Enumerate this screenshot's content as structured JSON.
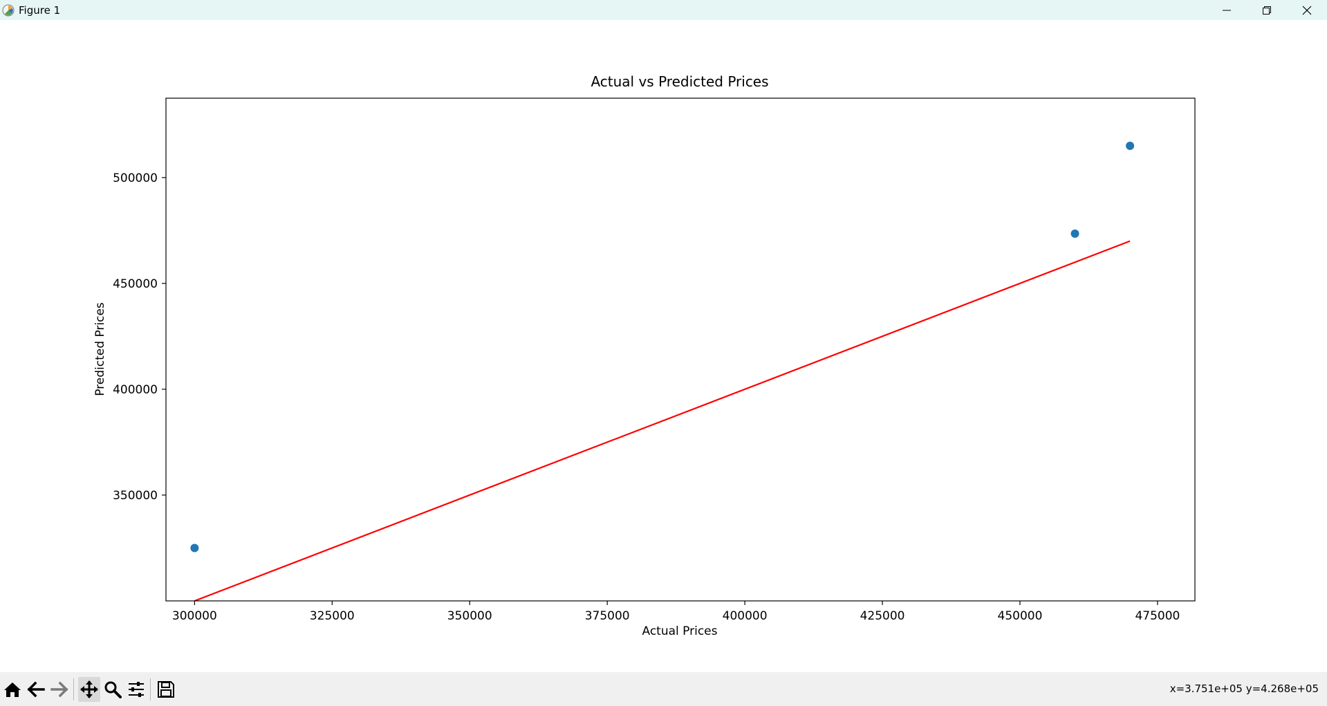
{
  "window": {
    "title": "Figure 1",
    "icons": {
      "app": "matplotlib-icon",
      "minimize": "minimize-icon",
      "restore": "restore-icon",
      "close": "close-icon"
    }
  },
  "toolbar": {
    "tools": [
      {
        "name": "home-icon",
        "active": false
      },
      {
        "name": "back-arrow-icon",
        "active": false
      },
      {
        "name": "forward-arrow-icon",
        "active": false
      },
      {
        "name": "pan-icon",
        "active": true
      },
      {
        "name": "zoom-icon",
        "active": false
      },
      {
        "name": "configure-subplots-icon",
        "active": false
      },
      {
        "name": "save-icon",
        "active": false
      }
    ],
    "coordinates": "x=3.751e+05 y=4.268e+05"
  },
  "chart_data": {
    "type": "scatter",
    "title": "Actual vs Predicted Prices",
    "xlabel": "Actual Prices",
    "ylabel": "Predicted Prices",
    "xlim": [
      294800,
      481800
    ],
    "ylim": [
      300000,
      537500
    ],
    "xticks": [
      300000,
      325000,
      350000,
      375000,
      400000,
      425000,
      450000,
      475000
    ],
    "yticks": [
      350000,
      400000,
      450000,
      500000
    ],
    "grid": false,
    "series": [
      {
        "type": "scatter",
        "color": "#1f77b4",
        "x": [
          300000,
          460000,
          470000
        ],
        "y": [
          325000,
          473500,
          515000
        ]
      },
      {
        "type": "line",
        "color": "#ff0000",
        "x": [
          300000,
          470000
        ],
        "y": [
          300000,
          470000
        ]
      }
    ]
  }
}
